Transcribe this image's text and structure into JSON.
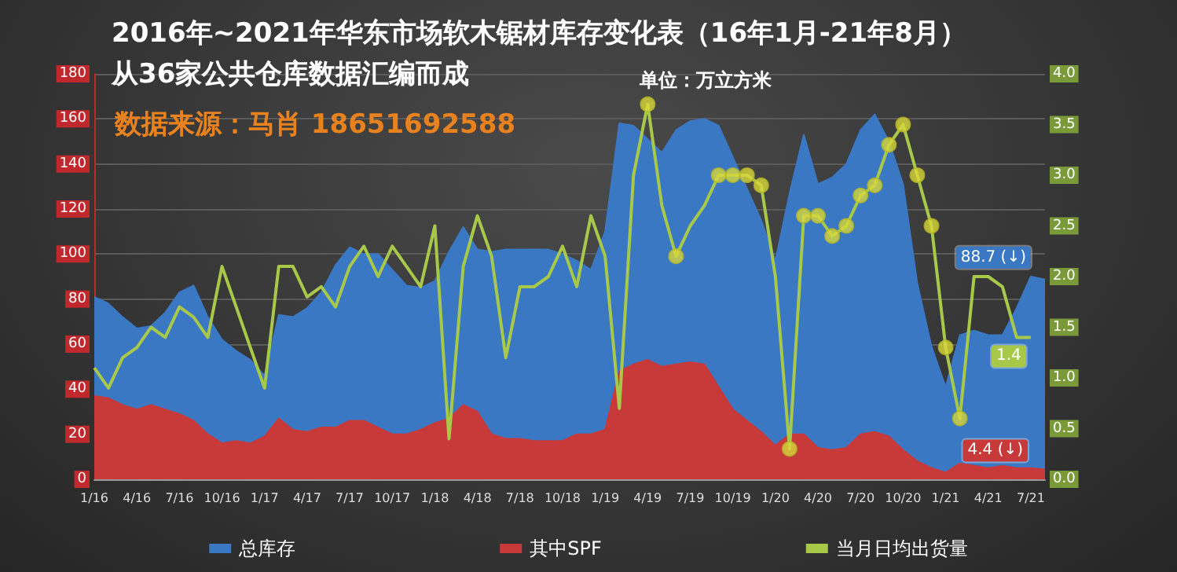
{
  "chart_data": {
    "type": "area",
    "title": "2016年~2021年华东市场软木锯材库存变化表（16年1月-21年8月）",
    "subtitle": "从36家公共仓库数据汇编而成",
    "annotations": [
      "单位：万立方米",
      "数据来源：马肖 18651692588"
    ],
    "categories": [
      "1/16",
      null,
      null,
      "4/16",
      null,
      null,
      "7/16",
      null,
      null,
      "10/16",
      null,
      null,
      "1/17",
      null,
      null,
      "4/17",
      null,
      null,
      "7/17",
      null,
      null,
      "10/17",
      null,
      null,
      "1/18",
      null,
      null,
      "4/18",
      null,
      null,
      "7/18",
      null,
      null,
      "10/18",
      null,
      null,
      "1/19",
      null,
      null,
      "4/19",
      null,
      null,
      "7/19",
      null,
      null,
      "10/19",
      null,
      null,
      "1/20",
      null,
      null,
      "4/20",
      null,
      null,
      "7/20",
      null,
      null,
      "10/20",
      null,
      null,
      "1/21",
      null,
      null,
      "4/21",
      null,
      null,
      "7/21",
      null
    ],
    "series": [
      {
        "name": "总库存",
        "color": "#3a78c4",
        "values": [
          81,
          78,
          72,
          67,
          68,
          74,
          83,
          86,
          72,
          62,
          57,
          53,
          46,
          73,
          72,
          76,
          83,
          95,
          103,
          100,
          100,
          93,
          86,
          85,
          88,
          101,
          112,
          102,
          101,
          102,
          102,
          102,
          102,
          100,
          97,
          93,
          110,
          158,
          157,
          151,
          145,
          155,
          159,
          160,
          157,
          143,
          129,
          115,
          97,
          127,
          153,
          131,
          134,
          140,
          155,
          162,
          150,
          131,
          87,
          59,
          41,
          64,
          66,
          64,
          64,
          76,
          90,
          88.7
        ],
        "value_labels": [
          null,
          null,
          null,
          null,
          null,
          null,
          null,
          null,
          null,
          null,
          null,
          null,
          null,
          null,
          null,
          null,
          null,
          null,
          null,
          null,
          null,
          null,
          null,
          null,
          null,
          null,
          null,
          null,
          null,
          null,
          null,
          null,
          null,
          null,
          null,
          null,
          null,
          null,
          null,
          null,
          null,
          null,
          null,
          null,
          null,
          null,
          null,
          null,
          null,
          null,
          null,
          null,
          null,
          null,
          null,
          null,
          null,
          null,
          null,
          null,
          null,
          null,
          null,
          null,
          null,
          null,
          null,
          "88.7 (↓)"
        ]
      },
      {
        "name": "其中SPF",
        "color": "#c83a3a",
        "values": [
          37,
          36,
          33,
          31,
          33,
          31,
          29,
          26,
          20,
          16,
          17,
          16,
          19,
          27,
          22,
          21,
          23,
          23,
          26,
          26,
          23,
          20,
          20,
          22,
          25,
          27,
          33,
          30,
          20,
          18,
          18,
          17,
          17,
          17,
          20,
          20,
          22,
          48,
          51,
          53,
          50,
          51,
          52,
          51,
          41,
          31,
          26,
          21,
          15,
          20,
          20,
          14,
          13,
          14,
          20,
          21,
          19,
          13,
          8,
          5,
          3,
          7,
          6,
          5,
          6,
          5,
          5,
          4.4
        ],
        "value_labels": [
          null,
          null,
          null,
          null,
          null,
          null,
          null,
          null,
          null,
          null,
          null,
          null,
          null,
          null,
          null,
          null,
          null,
          null,
          null,
          null,
          null,
          null,
          null,
          null,
          null,
          null,
          null,
          null,
          null,
          null,
          null,
          null,
          null,
          null,
          null,
          null,
          null,
          null,
          null,
          null,
          null,
          null,
          null,
          null,
          null,
          null,
          null,
          null,
          null,
          null,
          null,
          null,
          null,
          null,
          null,
          null,
          null,
          null,
          null,
          null,
          null,
          null,
          null,
          null,
          null,
          null,
          null,
          "4.4 (↓)"
        ]
      },
      {
        "name": "当月日均出货量",
        "type": "line",
        "axis": "y2",
        "marker": "none",
        "color": "#a8c84a",
        "values": [
          1.1,
          0.9,
          1.2,
          1.3,
          1.5,
          1.4,
          1.7,
          1.6,
          1.4,
          2.1,
          1.7,
          1.3,
          0.9,
          2.1,
          2.1,
          1.8,
          1.9,
          1.7,
          2.1,
          2.3,
          2.0,
          2.3,
          2.1,
          1.9,
          2.5,
          0.4,
          2.1,
          2.6,
          2.2,
          1.2,
          1.9,
          1.9,
          2.0,
          2.3,
          1.9,
          2.6,
          2.2,
          0.7,
          3.0,
          3.7,
          2.7,
          2.2,
          2.5,
          2.7,
          3.0,
          3.0,
          3.0,
          2.9,
          2.0,
          0.3,
          2.6,
          2.6,
          2.4,
          2.5,
          2.8,
          2.9,
          3.3,
          3.5,
          3.0,
          2.5,
          1.3,
          0.6,
          2.0,
          2.0,
          1.9,
          1.4,
          1.4,
          null
        ],
        "value_labels": [
          null,
          null,
          null,
          null,
          null,
          null,
          null,
          null,
          null,
          null,
          null,
          null,
          null,
          null,
          null,
          null,
          null,
          null,
          null,
          null,
          null,
          null,
          null,
          null,
          null,
          null,
          null,
          null,
          null,
          null,
          null,
          null,
          null,
          null,
          null,
          null,
          null,
          null,
          null,
          null,
          null,
          null,
          null,
          null,
          null,
          null,
          null,
          null,
          null,
          null,
          null,
          null,
          null,
          null,
          null,
          null,
          null,
          null,
          null,
          null,
          null,
          null,
          null,
          null,
          null,
          null,
          "1.4",
          null
        ]
      },
      {
        "type": "scatter",
        "axis": "y2",
        "marker": "circle",
        "color": "#d8d83a",
        "values": [
          null,
          null,
          null,
          null,
          null,
          null,
          null,
          null,
          null,
          null,
          null,
          null,
          null,
          null,
          null,
          null,
          null,
          null,
          null,
          null,
          null,
          null,
          null,
          null,
          null,
          null,
          null,
          null,
          null,
          null,
          null,
          null,
          null,
          null,
          null,
          null,
          null,
          null,
          null,
          3.7,
          null,
          2.2,
          null,
          null,
          3.0,
          3.0,
          3.0,
          2.9,
          null,
          0.3,
          2.6,
          2.6,
          2.4,
          2.5,
          2.8,
          2.9,
          3.3,
          3.5,
          3.0,
          2.5,
          1.3,
          0.6,
          null,
          null,
          null,
          null,
          null,
          null
        ]
      }
    ],
    "ylim": [
      0,
      180
    ],
    "yticks": [
      0,
      20,
      40,
      60,
      80,
      100,
      120,
      140,
      160,
      180
    ],
    "y2lim": [
      0,
      4
    ],
    "y2ticks": [
      {
        "value": 0,
        "label": "0.0"
      },
      0.5,
      {
        "value": 1,
        "label": "1.0"
      },
      1.5,
      {
        "value": 2,
        "label": "2.0"
      },
      2.5,
      {
        "value": 3,
        "label": "3.0"
      },
      3.5,
      {
        "value": 4,
        "label": "4.0"
      }
    ],
    "grid": "y",
    "legend": "bottom"
  }
}
